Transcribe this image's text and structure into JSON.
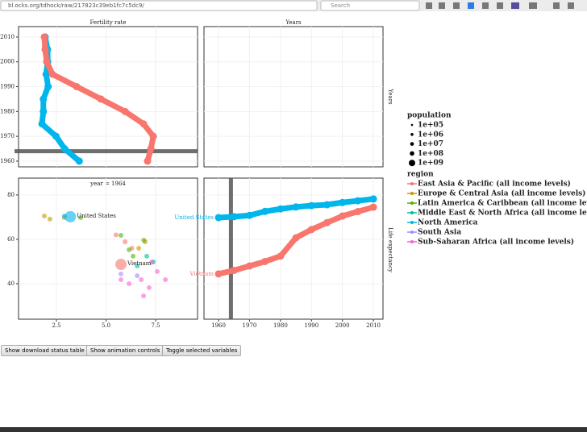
{
  "browser": {
    "url": "bl.ocks.org/tdhock/raw/217823c39eb1fc7c5dc9/",
    "search_placeholder": "Search"
  },
  "titles": {
    "fertility": "Fertility rate",
    "years": "Years",
    "life_expectancy": "Life expectancy",
    "year_prefix": "year = 1964"
  },
  "highlight_year": 1964,
  "fertility_axis": {
    "lim": [
      0.59,
      9.61
    ],
    "ticks": [
      2.5,
      {
        "value": 5,
        "label": "5.0"
      },
      7.5
    ]
  },
  "year_axis": {
    "lim": [
      1957.7,
      2014.2
    ],
    "ticks": [
      1960,
      1970,
      1980,
      1990,
      2000,
      2010
    ]
  },
  "life_axis": {
    "lim": [
      24,
      87.6
    ],
    "ticks": [
      40,
      60,
      80
    ]
  },
  "time_axis": {
    "lim": [
      1955.3,
      2013.1
    ],
    "ticks": [
      1960,
      1970,
      1980,
      1990,
      2000,
      2010
    ]
  },
  "years": [
    1960,
    1965,
    1970,
    1975,
    1980,
    1985,
    1990,
    1995,
    2000,
    2005,
    2010
  ],
  "countries": [
    {
      "name": "United States",
      "color": "#00B6EB",
      "fertility": [
        3.65,
        2.91,
        2.48,
        1.77,
        1.84,
        1.84,
        2.08,
        1.98,
        2.06,
        2.05,
        1.93
      ],
      "life_expectancy": [
        69.8,
        70.2,
        70.8,
        72.6,
        73.7,
        74.6,
        75.2,
        75.6,
        76.6,
        77.4,
        78.2
      ],
      "fertility_now": 3.2,
      "life_now": 70.2
    },
    {
      "name": "Vietnam",
      "color": "#F8766D",
      "fertility": [
        7.09,
        7.26,
        7.38,
        6.89,
        5.96,
        4.74,
        3.52,
        2.3,
        2.01,
        1.93,
        1.89
      ],
      "life_expectancy": [
        44.4,
        46,
        48,
        50,
        52.4,
        60.7,
        64.4,
        67.5,
        70.5,
        72.5,
        74.5
      ],
      "fertility_now": 5.75,
      "life_now": 48.7
    }
  ],
  "population_legend": {
    "title": "population",
    "entries": [
      "1e+05",
      "1e+06",
      "1e+07",
      "1e+08",
      "1e+09"
    ]
  },
  "region_legend": {
    "title": "region",
    "regions": [
      {
        "name": "East Asia & Pacific (all income levels)",
        "color": "#F8766D",
        "fertility": [
          5.96,
          6.3,
          5.5
        ],
        "life_expectancy": [
          58.9,
          56,
          62
        ]
      },
      {
        "name": "Europe & Central Asia (all income levels)",
        "color": "#C49A00",
        "fertility": [
          1.89,
          2.17,
          2.9,
          6.65,
          6.97
        ],
        "life_expectancy": [
          70.5,
          69.1,
          69.8,
          56,
          58.9
        ]
      },
      {
        "name": "Latin America & Caribbean (all income levels)",
        "color": "#53B400",
        "fertility": [
          5.75,
          6.16,
          6.9,
          6.36,
          3.72
        ],
        "life_expectancy": [
          61.8,
          55.3,
          59.6,
          52.4,
          69.8
        ]
      },
      {
        "name": "Middle East & North Africa (all income levels)",
        "color": "#00C094",
        "fertility": [
          7.38,
          6.57,
          7.05
        ],
        "life_expectancy": [
          49.8,
          48,
          52.4
        ]
      },
      {
        "name": "North America",
        "color": "#00B6EB",
        "fertility": [
          2.9
        ],
        "life_expectancy": [
          70.5
        ]
      },
      {
        "name": "South Asia",
        "color": "#A58AFF",
        "fertility": [
          5.75,
          6.57
        ],
        "life_expectancy": [
          44.4,
          43.6
        ]
      },
      {
        "name": "Sub-Saharan Africa (all income levels)",
        "color": "#FB61D7",
        "fertility": [
          6.77,
          7.17,
          6.16,
          7.58,
          6.89,
          7.99,
          5.75,
          7.3
        ],
        "life_expectancy": [
          41.8,
          38.2,
          40,
          45.5,
          34.5,
          41.8,
          41.8,
          49.8
        ]
      }
    ]
  },
  "buttons": [
    "Show download status table",
    "Show animation controls",
    "Toggle selected variables"
  ]
}
